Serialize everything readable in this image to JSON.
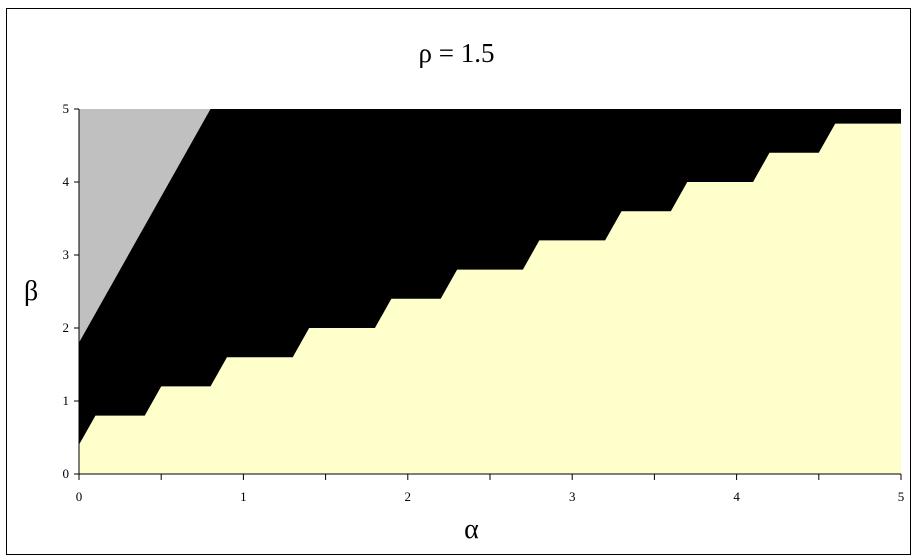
{
  "chart_data": {
    "type": "area",
    "title": "ρ = 1.5",
    "xlabel": "α",
    "ylabel": "β",
    "xlim": [
      0,
      5
    ],
    "ylim": [
      0,
      5
    ],
    "xticks": [
      "0",
      "1",
      "2",
      "3",
      "4",
      "5"
    ],
    "yticks": [
      "0",
      "1",
      "2",
      "3",
      "4",
      "5"
    ],
    "x_minor_step": 0.5,
    "grid": false,
    "legend": "none",
    "regions": [
      {
        "color": "#000000",
        "polygon": [
          [
            0,
            0
          ],
          [
            5,
            0
          ],
          [
            5,
            5
          ],
          [
            0,
            5
          ]
        ]
      },
      {
        "color": "#c0c0c0",
        "polygon": [
          [
            0,
            1.8
          ],
          [
            0.8,
            5
          ],
          [
            0,
            5
          ]
        ]
      },
      {
        "color": "#ffffcc",
        "polygon": [
          [
            0,
            0
          ],
          [
            5,
            0
          ],
          [
            5,
            4.8
          ],
          [
            4.6,
            4.8
          ],
          [
            4.5,
            4.4
          ],
          [
            4.2,
            4.4
          ],
          [
            4.1,
            4.0
          ],
          [
            3.7,
            4.0
          ],
          [
            3.6,
            3.6
          ],
          [
            3.3,
            3.6
          ],
          [
            3.2,
            3.2
          ],
          [
            2.8,
            3.2
          ],
          [
            2.7,
            2.8
          ],
          [
            2.3,
            2.8
          ],
          [
            2.2,
            2.4
          ],
          [
            1.9,
            2.4
          ],
          [
            1.8,
            2.0
          ],
          [
            1.4,
            2.0
          ],
          [
            1.3,
            1.6
          ],
          [
            0.9,
            1.6
          ],
          [
            0.8,
            1.2
          ],
          [
            0.5,
            1.2
          ],
          [
            0.4,
            0.8
          ],
          [
            0.1,
            0.8
          ],
          [
            0,
            0.4
          ]
        ]
      }
    ]
  }
}
